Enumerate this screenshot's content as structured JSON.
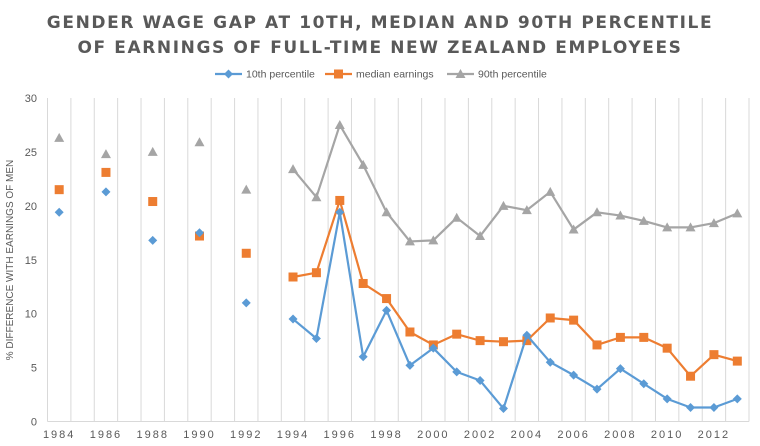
{
  "chart_data": {
    "type": "line",
    "title_lines": [
      "GENDER WAGE GAP AT 10TH, MEDIAN AND 90TH PERCENTILE",
      "OF EARNINGS OF FULL-TIME NEW ZEALAND EMPLOYEES"
    ],
    "xlabel": "",
    "ylabel": "% DIFFERENCE WITH EARNINGS OF MEN",
    "ylim": [
      0,
      30
    ],
    "yticks": [
      0,
      5,
      10,
      15,
      20,
      25,
      30
    ],
    "x": [
      1984,
      1985,
      1986,
      1987,
      1988,
      1989,
      1990,
      1991,
      1992,
      1993,
      1994,
      1995,
      1996,
      1997,
      1998,
      1999,
      2000,
      2001,
      2002,
      2003,
      2004,
      2005,
      2006,
      2007,
      2008,
      2009,
      2010,
      2011,
      2012,
      2013
    ],
    "xtick_labels": [
      "1984",
      "1986",
      "1988",
      "1990",
      "1992",
      "1994",
      "1996",
      "1998",
      "2000",
      "2002",
      "2004",
      "2006",
      "2008",
      "2010",
      "2012"
    ],
    "grid": "vertical",
    "legend_position": "top-center",
    "series": [
      {
        "name": "10th percentile",
        "color": "#5B9BD5",
        "marker": "diamond",
        "values": [
          19.4,
          null,
          21.3,
          null,
          16.8,
          null,
          17.5,
          null,
          11.0,
          null,
          9.5,
          7.7,
          19.4,
          6.0,
          10.3,
          5.2,
          6.8,
          4.6,
          3.8,
          1.2,
          8.0,
          5.5,
          4.3,
          3.0,
          4.9,
          3.5,
          2.1,
          1.3,
          1.3,
          2.1
        ]
      },
      {
        "name": "median earnings",
        "color": "#ED7D31",
        "marker": "square",
        "values": [
          21.5,
          null,
          23.1,
          null,
          20.4,
          null,
          17.2,
          null,
          15.6,
          null,
          13.4,
          13.8,
          20.5,
          12.8,
          11.4,
          8.3,
          7.1,
          8.1,
          7.5,
          7.4,
          7.5,
          9.6,
          9.4,
          7.1,
          7.8,
          7.8,
          6.8,
          4.2,
          6.2,
          5.6
        ]
      },
      {
        "name": "90th percentile",
        "color": "#A5A5A5",
        "marker": "triangle",
        "values": [
          26.3,
          null,
          24.8,
          null,
          25.0,
          null,
          25.9,
          null,
          21.5,
          null,
          23.4,
          20.8,
          27.5,
          23.8,
          19.4,
          16.7,
          16.8,
          18.9,
          17.2,
          20.0,
          19.6,
          21.3,
          17.8,
          19.4,
          19.1,
          18.6,
          18.0,
          18.0,
          18.4,
          19.3
        ]
      }
    ]
  }
}
